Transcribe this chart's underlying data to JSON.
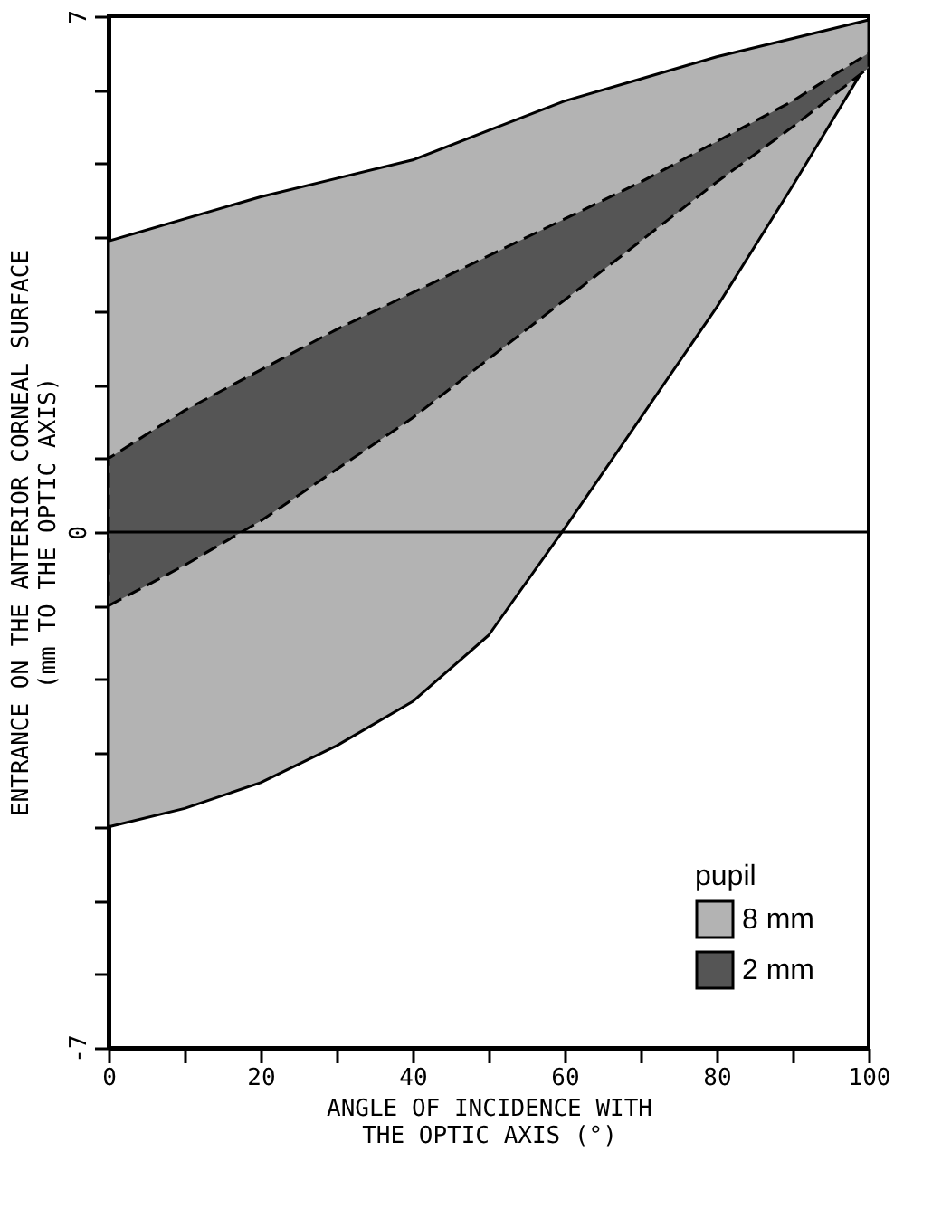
{
  "chart_data": {
    "type": "line",
    "xlabel": "ANGLE OF INCIDENCE WITH\nTHE OPTIC AXIS (°)",
    "ylabel": "ENTRANCE ON THE ANTERIOR CORNEAL SURFACE\n(mm TO THE OPTIC AXIS)",
    "legend_title": "pupil",
    "x": [
      0,
      10,
      20,
      30,
      40,
      50,
      60,
      70,
      80,
      90,
      100
    ],
    "series": [
      {
        "name": "8 mm",
        "color": "#b3b3b3",
        "values": [
          null,
          null,
          null,
          null,
          null,
          null,
          null,
          null,
          null,
          null,
          null
        ],
        "upper": [
          3.95,
          4.25,
          4.55,
          4.8,
          5.05,
          5.45,
          5.85,
          6.15,
          6.45,
          6.7,
          6.95
        ],
        "lower": [
          -4.0,
          -3.75,
          -3.4,
          -2.9,
          -2.3,
          -1.4,
          0.05,
          1.55,
          3.05,
          4.7,
          6.4
        ],
        "line_style": "solid"
      },
      {
        "name": "2 mm",
        "color": "#555555",
        "values": [
          null,
          null,
          null,
          null,
          null,
          null,
          null,
          null,
          null,
          null,
          null
        ],
        "upper": [
          1.0,
          1.65,
          2.2,
          2.75,
          3.25,
          3.75,
          4.25,
          4.75,
          5.3,
          5.85,
          6.5
        ],
        "lower": [
          -1.0,
          -0.45,
          0.15,
          0.85,
          1.55,
          2.35,
          3.15,
          3.95,
          4.75,
          5.5,
          6.3
        ],
        "line_style": "dashed"
      }
    ],
    "xlim": [
      0,
      100
    ],
    "xticks": [
      0,
      {
        "value": 10,
        "label": null
      },
      20,
      {
        "value": 30,
        "label": null
      },
      40,
      {
        "value": 50,
        "label": null
      },
      60,
      {
        "value": 70,
        "label": null
      },
      80,
      {
        "value": 90,
        "label": null
      },
      100
    ],
    "ylim": [
      -7,
      7
    ],
    "yticks": [
      -7,
      {
        "value": -6,
        "label": null
      },
      {
        "value": -5,
        "label": null
      },
      {
        "value": -4,
        "label": null
      },
      {
        "value": -3,
        "label": null
      },
      {
        "value": -2,
        "label": null
      },
      {
        "value": -1,
        "label": null
      },
      0,
      {
        "value": 1,
        "label": null
      },
      {
        "value": 2,
        "label": null
      },
      {
        "value": 3,
        "label": null
      },
      {
        "value": 4,
        "label": null
      },
      {
        "value": 5,
        "label": null
      },
      {
        "value": 6,
        "label": null
      },
      7
    ],
    "ref_lines": [
      {
        "axis": "y",
        "value": 0,
        "color": "#000000"
      }
    ],
    "legend": "bottom right",
    "grid": false
  }
}
